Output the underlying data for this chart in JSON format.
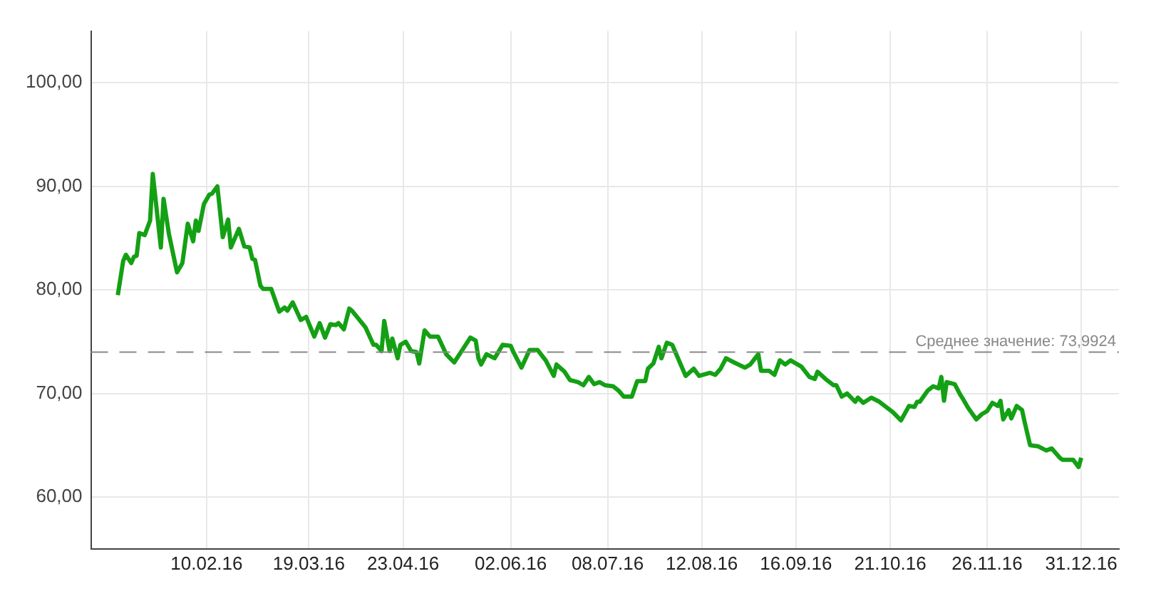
{
  "chart_data": {
    "type": "line",
    "x": [
      "2016-01-08",
      "2016-01-10",
      "2016-01-11",
      "2016-01-13",
      "2016-01-14",
      "2016-01-15",
      "2016-01-16",
      "2016-01-18",
      "2016-01-20",
      "2016-01-21",
      "2016-01-24",
      "2016-01-25",
      "2016-01-27",
      "2016-01-30",
      "2016-02-01",
      "2016-02-03",
      "2016-02-05",
      "2016-02-06",
      "2016-02-07",
      "2016-02-09",
      "2016-02-11",
      "2016-02-12",
      "2016-02-14",
      "2016-02-16",
      "2016-02-18",
      "2016-02-19",
      "2016-02-22",
      "2016-02-24",
      "2016-02-26",
      "2016-02-27",
      "2016-02-28",
      "2016-03-01",
      "2016-03-02",
      "2016-03-05",
      "2016-03-08",
      "2016-03-10",
      "2016-03-11",
      "2016-03-13",
      "2016-03-16",
      "2016-03-18",
      "2016-03-21",
      "2016-03-23",
      "2016-03-25",
      "2016-03-27",
      "2016-03-29",
      "2016-03-30",
      "2016-04-01",
      "2016-04-03",
      "2016-04-04",
      "2016-04-09",
      "2016-04-12",
      "2016-04-13",
      "2016-04-15",
      "2016-04-16",
      "2016-04-18",
      "2016-04-19",
      "2016-04-21",
      "2016-04-22",
      "2016-04-24",
      "2016-04-26",
      "2016-04-28",
      "2016-04-29",
      "2016-05-01",
      "2016-05-03",
      "2016-05-06",
      "2016-05-09",
      "2016-05-12",
      "2016-05-15",
      "2016-05-18",
      "2016-05-20",
      "2016-05-21",
      "2016-05-22",
      "2016-05-24",
      "2016-05-27",
      "2016-05-30",
      "2016-06-02",
      "2016-06-03",
      "2016-06-06",
      "2016-06-09",
      "2016-06-12",
      "2016-06-15",
      "2016-06-18",
      "2016-06-19",
      "2016-06-22",
      "2016-06-24",
      "2016-06-27",
      "2016-06-29",
      "2016-07-01",
      "2016-07-03",
      "2016-07-05",
      "2016-07-07",
      "2016-07-10",
      "2016-07-12",
      "2016-07-14",
      "2016-07-17",
      "2016-07-19",
      "2016-07-22",
      "2016-07-23",
      "2016-07-25",
      "2016-07-27",
      "2016-07-28",
      "2016-07-30",
      "2016-08-01",
      "2016-08-04",
      "2016-08-06",
      "2016-08-09",
      "2016-08-11",
      "2016-08-15",
      "2016-08-17",
      "2016-08-19",
      "2016-08-21",
      "2016-08-24",
      "2016-08-28",
      "2016-08-30",
      "2016-09-02",
      "2016-09-03",
      "2016-09-06",
      "2016-09-08",
      "2016-09-10",
      "2016-09-12",
      "2016-09-14",
      "2016-09-18",
      "2016-09-21",
      "2016-09-23",
      "2016-09-24",
      "2016-09-27",
      "2016-09-30",
      "2016-10-01",
      "2016-10-03",
      "2016-10-05",
      "2016-10-08",
      "2016-10-09",
      "2016-10-11",
      "2016-10-14",
      "2016-10-17",
      "2016-10-22",
      "2016-10-25",
      "2016-10-28",
      "2016-10-30",
      "2016-10-31",
      "2016-11-01",
      "2016-11-04",
      "2016-11-06",
      "2016-11-08",
      "2016-11-09",
      "2016-11-10",
      "2016-11-11",
      "2016-11-14",
      "2016-11-16",
      "2016-11-17",
      "2016-11-19",
      "2016-11-22",
      "2016-11-24",
      "2016-11-26",
      "2016-11-28",
      "2016-11-30",
      "2016-12-01",
      "2016-12-02",
      "2016-12-04",
      "2016-12-05",
      "2016-12-07",
      "2016-12-09",
      "2016-12-10",
      "2016-12-12",
      "2016-12-15",
      "2016-12-18",
      "2016-12-20",
      "2016-12-23",
      "2016-12-24",
      "2016-12-27",
      "2016-12-28",
      "2016-12-30",
      "2016-12-31"
    ],
    "series": [
      {
        "color": "#14a014",
        "values": [
          79.5,
          82.8,
          83.4,
          82.6,
          83.2,
          83.3,
          85.5,
          85.3,
          86.7,
          91.2,
          84.1,
          88.8,
          85.4,
          81.7,
          82.6,
          86.4,
          84.7,
          86.7,
          85.7,
          88.3,
          89.2,
          89.3,
          90.0,
          85.1,
          86.8,
          84.1,
          85.9,
          84.2,
          84.1,
          83.0,
          82.9,
          80.4,
          80.1,
          80.1,
          77.9,
          78.3,
          78.0,
          78.8,
          77.1,
          77.4,
          75.5,
          76.8,
          75.4,
          76.7,
          76.6,
          76.8,
          76.2,
          78.2,
          78.0,
          76.4,
          74.7,
          74.7,
          74.1,
          77.0,
          74.1,
          75.3,
          73.4,
          74.7,
          75.0,
          74.1,
          74.0,
          72.9,
          76.1,
          75.5,
          75.5,
          73.8,
          73.0,
          74.2,
          75.4,
          75.1,
          73.4,
          72.8,
          73.8,
          73.4,
          74.7,
          74.6,
          74.0,
          72.5,
          74.2,
          74.2,
          73.2,
          71.7,
          72.8,
          72.1,
          71.3,
          71.1,
          70.8,
          71.6,
          70.9,
          71.1,
          70.8,
          70.7,
          70.3,
          69.7,
          69.7,
          71.2,
          71.2,
          72.4,
          72.9,
          74.5,
          73.4,
          74.9,
          74.7,
          72.9,
          71.7,
          72.4,
          71.7,
          72.0,
          71.8,
          72.4,
          73.4,
          73.0,
          72.5,
          72.8,
          73.8,
          72.2,
          72.2,
          71.8,
          73.2,
          72.8,
          73.2,
          72.6,
          71.6,
          71.4,
          72.1,
          71.4,
          70.8,
          70.8,
          69.7,
          70.0,
          69.2,
          69.6,
          69.1,
          69.6,
          69.2,
          68.2,
          67.4,
          68.8,
          68.7,
          69.2,
          69.2,
          70.3,
          70.7,
          70.5,
          71.6,
          69.3,
          71.1,
          70.9,
          69.9,
          69.5,
          68.6,
          67.5,
          68.0,
          68.3,
          69.1,
          68.8,
          69.3,
          67.5,
          68.4,
          67.6,
          68.8,
          68.4,
          67.2,
          65.0,
          64.9,
          64.5,
          64.7,
          63.8,
          63.6,
          63.6,
          63.6,
          62.9,
          63.8
        ]
      }
    ],
    "xlim": [
      "2015-12-29",
      "2017-01-14"
    ],
    "xticks": [
      {
        "value": "2016-02-10",
        "label": "10.02.16"
      },
      {
        "value": "2016-03-19",
        "label": "19.03.16"
      },
      {
        "value": "2016-04-23",
        "label": "23.04.16"
      },
      {
        "value": "2016-06-02",
        "label": "02.06.16"
      },
      {
        "value": "2016-07-08",
        "label": "08.07.16"
      },
      {
        "value": "2016-08-12",
        "label": "12.08.16"
      },
      {
        "value": "2016-09-16",
        "label": "16.09.16"
      },
      {
        "value": "2016-10-21",
        "label": "21.10.16"
      },
      {
        "value": "2016-11-26",
        "label": "26.11.16"
      },
      {
        "value": "2016-12-31",
        "label": "31.12.16"
      }
    ],
    "ylim": [
      55,
      105
    ],
    "yticks": [
      {
        "value": 60,
        "label": "60,00"
      },
      {
        "value": 70,
        "label": "70,00"
      },
      {
        "value": 80,
        "label": "80,00"
      },
      {
        "value": 90,
        "label": "90,00"
      },
      {
        "value": 100,
        "label": "100,00"
      }
    ],
    "grid": true,
    "legend": false,
    "marker": "none",
    "line_style": "solid",
    "ref_lines": [
      {
        "axis": "y",
        "value": 73.9924,
        "label": "Среднее значение: 73,9924",
        "color": "#888888",
        "line_style": "dashed"
      }
    ]
  }
}
